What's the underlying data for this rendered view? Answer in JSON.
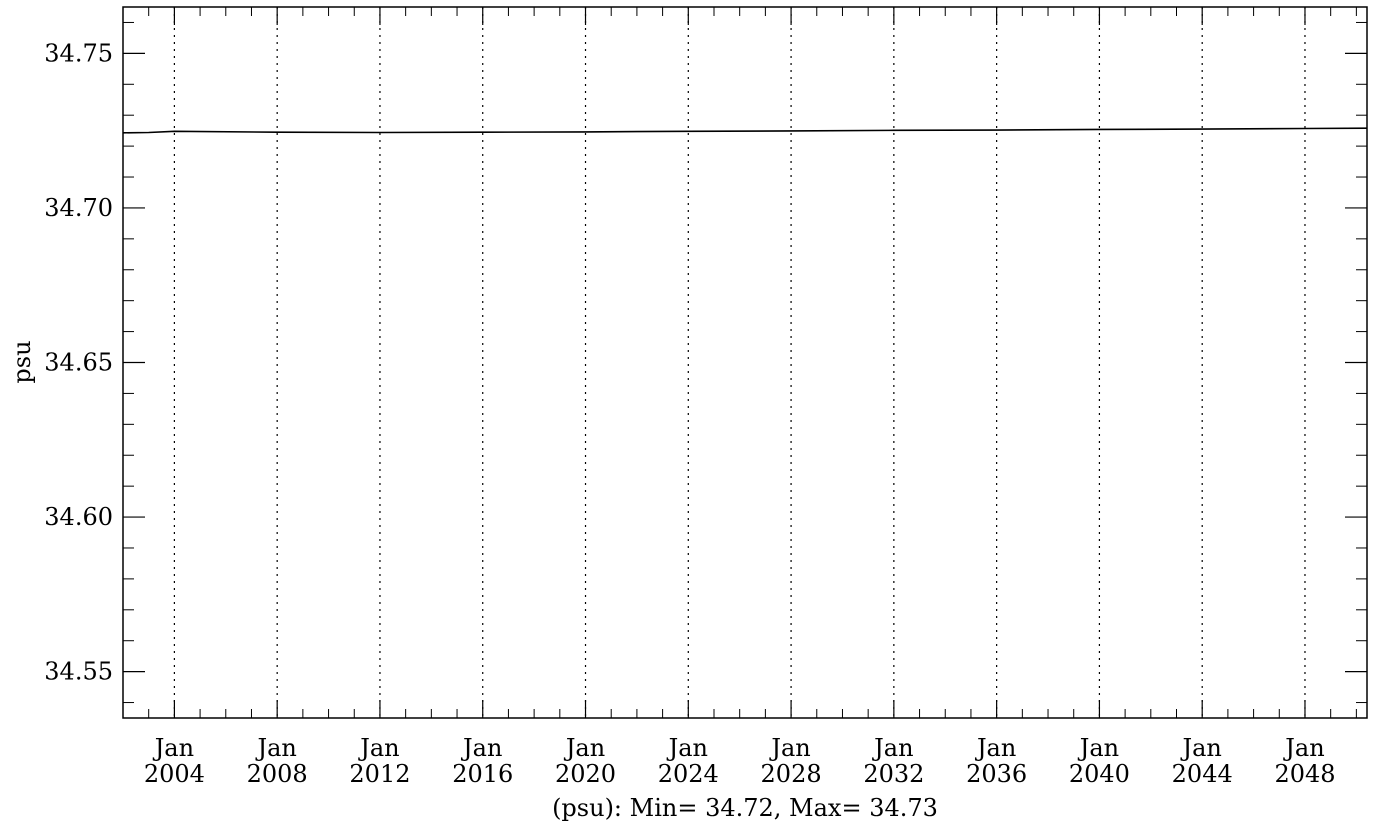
{
  "chart_data": {
    "type": "line",
    "title": "",
    "ylabel": "psu",
    "xlabel": "(psu): Min= 34.72, Max= 34.73",
    "ylim": [
      34.535,
      34.765
    ],
    "xlim": [
      "2002-01-01",
      "2050-06-01"
    ],
    "y_ticks": [
      "34.55",
      "34.60",
      "34.65",
      "34.70",
      "34.75"
    ],
    "x_ticks": [
      {
        "month": "Jan",
        "year": "2004",
        "date": "2004-01-01"
      },
      {
        "month": "Jan",
        "year": "2008",
        "date": "2008-01-01"
      },
      {
        "month": "Jan",
        "year": "2012",
        "date": "2012-01-01"
      },
      {
        "month": "Jan",
        "year": "2016",
        "date": "2016-01-01"
      },
      {
        "month": "Jan",
        "year": "2020",
        "date": "2020-01-01"
      },
      {
        "month": "Jan",
        "year": "2024",
        "date": "2024-01-01"
      },
      {
        "month": "Jan",
        "year": "2028",
        "date": "2028-01-01"
      },
      {
        "month": "Jan",
        "year": "2032",
        "date": "2032-01-01"
      },
      {
        "month": "Jan",
        "year": "2036",
        "date": "2036-01-01"
      },
      {
        "month": "Jan",
        "year": "2040",
        "date": "2040-01-01"
      },
      {
        "month": "Jan",
        "year": "2044",
        "date": "2044-01-01"
      },
      {
        "month": "Jan",
        "year": "2048",
        "date": "2048-01-01"
      }
    ],
    "grid": "vertical dotted",
    "series": [
      {
        "color": "#000000",
        "x": [
          "2002-01-01",
          "2003-01-01",
          "2004-01-01",
          "2008-01-01",
          "2012-01-01",
          "2016-01-01",
          "2020-01-01",
          "2024-01-01",
          "2028-01-01",
          "2032-01-01",
          "2036-01-01",
          "2040-01-01",
          "2044-01-01",
          "2048-01-01",
          "2050-06-01"
        ],
        "y": [
          34.7243,
          34.7244,
          34.7248,
          34.7245,
          34.7244,
          34.7245,
          34.7246,
          34.7248,
          34.7249,
          34.7251,
          34.7252,
          34.7254,
          34.7255,
          34.7257,
          34.7258
        ]
      }
    ]
  }
}
